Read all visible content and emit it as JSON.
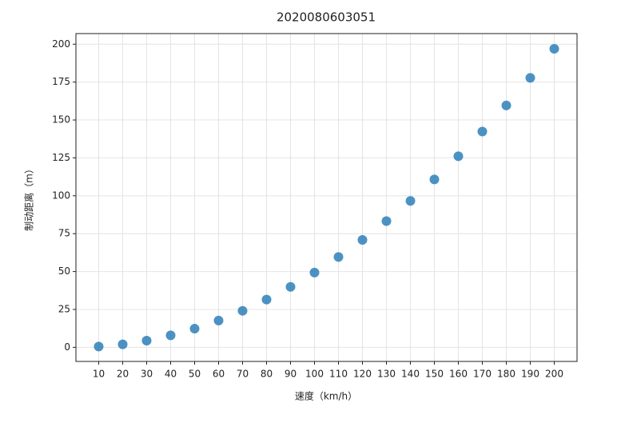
{
  "chart_data": {
    "type": "scatter",
    "title": "2020080603051",
    "x_label": "速度（km/h）",
    "y_label": "制动距离（m）",
    "x": [
      10,
      20,
      30,
      40,
      50,
      60,
      70,
      80,
      90,
      100,
      110,
      120,
      130,
      140,
      150,
      160,
      170,
      180,
      190,
      200
    ],
    "series": [
      {
        "color": "#1f77b4",
        "values": [
          0.5,
          2.0,
          4.4,
          7.9,
          12.3,
          17.7,
          24.1,
          31.5,
          39.9,
          49.3,
          59.6,
          70.9,
          83.3,
          96.6,
          110.8,
          126.1,
          142.4,
          159.6,
          177.8,
          197.0
        ]
      }
    ],
    "xlim": [
      0.5,
      209.5
    ],
    "xticks": [
      10,
      20,
      30,
      40,
      50,
      60,
      70,
      80,
      90,
      100,
      110,
      120,
      130,
      140,
      150,
      160,
      170,
      180,
      190,
      200
    ],
    "ylim": [
      -9.3,
      207
    ],
    "yticks": [
      0,
      25,
      50,
      75,
      100,
      125,
      150,
      175,
      200
    ],
    "grid": true
  }
}
